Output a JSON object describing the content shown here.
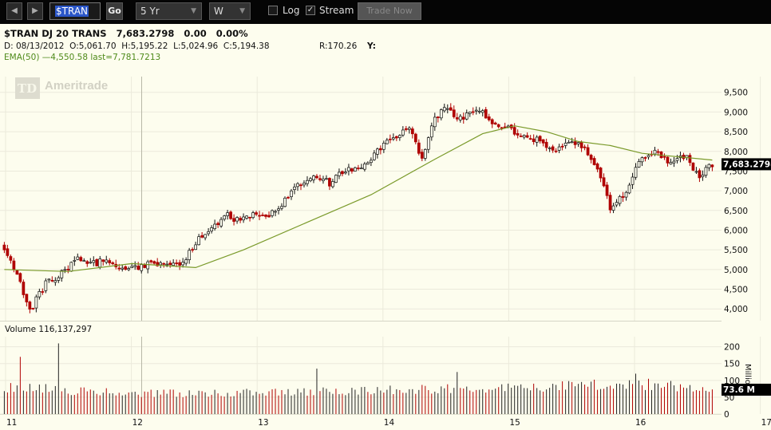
{
  "toolbar": {
    "back_icon": "left-arrow-icon",
    "forward_icon": "right-arrow-icon",
    "symbol_value": "$TRAN",
    "go_label": "Go",
    "period_value": "5 Yr",
    "aggregation_value": "W",
    "log_label": "Log",
    "log_checked": false,
    "stream_label": "Stream",
    "stream_checked": true,
    "trade_label": "Trade Now"
  },
  "header": {
    "line1": "$TRAN DJ 20 TRANS   7,683.2798   0.00   0.00%",
    "line2": "D: 08/13/2012  O:5,061.70  H:5,195.22  L:5,024.96  C:5,194.38",
    "range": "R:170.26",
    "y": "Y:",
    "ema": "EMA(50) —4,550.58 last=7,781.7213"
  },
  "watermark": "Ameritrade",
  "watermark_logo": "TD",
  "chart_data": [
    {
      "type": "candlestick",
      "title": "$TRAN DJ 20 TRANS",
      "ylim": [
        3700,
        9900
      ],
      "yticks": [
        "9,500",
        "9,000",
        "8,500",
        "8,000",
        "7,500",
        "7,000",
        "6,500",
        "6,000",
        "5,500",
        "5,000",
        "4,500",
        "4,000"
      ],
      "ytick_values": [
        9500,
        9000,
        8500,
        8000,
        7500,
        7000,
        6500,
        6000,
        5500,
        5000,
        4500,
        4000
      ],
      "xticks": [
        "11",
        "12",
        "13",
        "14",
        "15",
        "16",
        "17"
      ],
      "last_price": "7,683.2798",
      "last_value": 7683.28,
      "ema_label": "EMA(50)",
      "ema_color": "#7a9a2a",
      "up_color": "#111111",
      "down_color": "#b00000",
      "grid": true,
      "price_path": [
        [
          0,
          5600
        ],
        [
          5,
          4900
        ],
        [
          9,
          3950
        ],
        [
          14,
          4650
        ],
        [
          19,
          4900
        ],
        [
          24,
          5300
        ],
        [
          29,
          5150
        ],
        [
          34,
          5250
        ],
        [
          39,
          4950
        ],
        [
          44,
          5100
        ],
        [
          48,
          5150
        ],
        [
          53,
          5050
        ],
        [
          57,
          5200
        ],
        [
          61,
          5700
        ],
        [
          66,
          6100
        ],
        [
          71,
          6400
        ],
        [
          75,
          6200
        ],
        [
          80,
          6450
        ],
        [
          84,
          6350
        ],
        [
          89,
          6750
        ],
        [
          93,
          7100
        ],
        [
          98,
          7350
        ],
        [
          103,
          7200
        ],
        [
          108,
          7550
        ],
        [
          113,
          7600
        ],
        [
          118,
          8000
        ],
        [
          123,
          8350
        ],
        [
          128,
          8600
        ],
        [
          132,
          7800
        ],
        [
          136,
          8850
        ],
        [
          139,
          9050
        ],
        [
          144,
          8850
        ],
        [
          149,
          9100
        ],
        [
          154,
          8750
        ],
        [
          158,
          8600
        ],
        [
          163,
          8400
        ],
        [
          168,
          8300
        ],
        [
          173,
          7950
        ],
        [
          178,
          8250
        ],
        [
          183,
          8100
        ],
        [
          188,
          7400
        ],
        [
          191,
          6550
        ],
        [
          196,
          7000
        ],
        [
          200,
          7750
        ],
        [
          205,
          8050
        ],
        [
          210,
          7700
        ],
        [
          215,
          7900
        ],
        [
          219,
          7250
        ],
        [
          222,
          7683
        ]
      ],
      "ema_path": [
        [
          0,
          5000
        ],
        [
          20,
          4950
        ],
        [
          40,
          5150
        ],
        [
          60,
          5050
        ],
        [
          75,
          5500
        ],
        [
          95,
          6200
        ],
        [
          115,
          6900
        ],
        [
          135,
          7800
        ],
        [
          150,
          8450
        ],
        [
          160,
          8650
        ],
        [
          170,
          8500
        ],
        [
          180,
          8250
        ],
        [
          190,
          8150
        ],
        [
          200,
          7950
        ],
        [
          222,
          7781
        ]
      ]
    },
    {
      "type": "bar",
      "title": "Volume 116,137,297",
      "ylim": [
        0,
        230
      ],
      "yticks": [
        "200",
        "150",
        "100",
        "50",
        "0"
      ],
      "ytick_values": [
        200,
        150,
        100,
        50,
        0
      ],
      "unit_label": "Millio",
      "last_label": "73.6 M",
      "last_value": 73.6,
      "volume_path": [
        [
          0,
          75
        ],
        [
          5,
          80
        ],
        [
          20,
          70
        ],
        [
          40,
          60
        ],
        [
          60,
          62
        ],
        [
          80,
          64
        ],
        [
          100,
          66
        ],
        [
          120,
          72
        ],
        [
          140,
          74
        ],
        [
          160,
          78
        ],
        [
          180,
          88
        ],
        [
          200,
          90
        ],
        [
          222,
          74
        ]
      ],
      "volume_spikes": [
        [
          5,
          170
        ],
        [
          17,
          210
        ],
        [
          98,
          135
        ],
        [
          142,
          125
        ],
        [
          198,
          120
        ]
      ]
    }
  ]
}
